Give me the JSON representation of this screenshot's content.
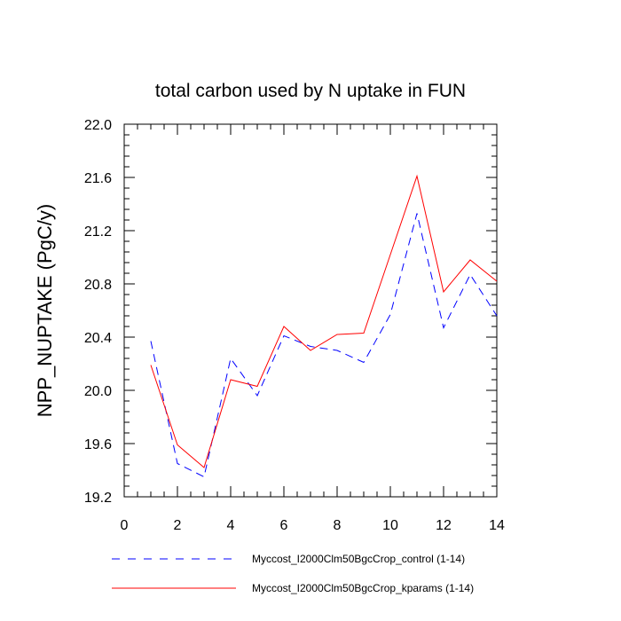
{
  "chart_data": {
    "type": "line",
    "title": "total carbon used by N uptake in FUN",
    "xlabel": "",
    "ylabel": "NPP_NUPTAKE  (PgC/y)",
    "xlim": [
      0,
      14
    ],
    "ylim": [
      19.2,
      22.0
    ],
    "x_ticks": [
      0,
      2,
      4,
      6,
      8,
      10,
      12,
      14
    ],
    "x_tick_labels": [
      "0",
      "2",
      "4",
      "6",
      "8",
      "10",
      "12",
      "14"
    ],
    "y_ticks": [
      19.2,
      19.6,
      20.0,
      20.4,
      20.8,
      21.2,
      21.6,
      22.0
    ],
    "y_tick_labels": [
      "19.2",
      "19.6",
      "20.0",
      "20.4",
      "20.8",
      "21.2",
      "21.6",
      "22.0"
    ],
    "grid": false,
    "legend_position": "bottom",
    "x": [
      1,
      2,
      3,
      4,
      5,
      6,
      7,
      8,
      9,
      10,
      11,
      12,
      13,
      14
    ],
    "series": [
      {
        "name": "Myccost_I2000Clm50BgcCrop_control (1-14)",
        "color": "#0000ff",
        "style": "dashed",
        "values": [
          20.37,
          19.45,
          19.35,
          20.24,
          19.96,
          20.41,
          20.33,
          20.3,
          20.21,
          20.57,
          21.33,
          20.47,
          20.87,
          20.56
        ]
      },
      {
        "name": "Myccost_I2000Clm50BgcCrop_kparams (1-14)",
        "color": "#ff0000",
        "style": "solid",
        "values": [
          20.19,
          19.59,
          19.42,
          20.08,
          20.03,
          20.48,
          20.3,
          20.42,
          20.43,
          21.02,
          21.61,
          20.74,
          20.98,
          20.82
        ]
      }
    ]
  }
}
